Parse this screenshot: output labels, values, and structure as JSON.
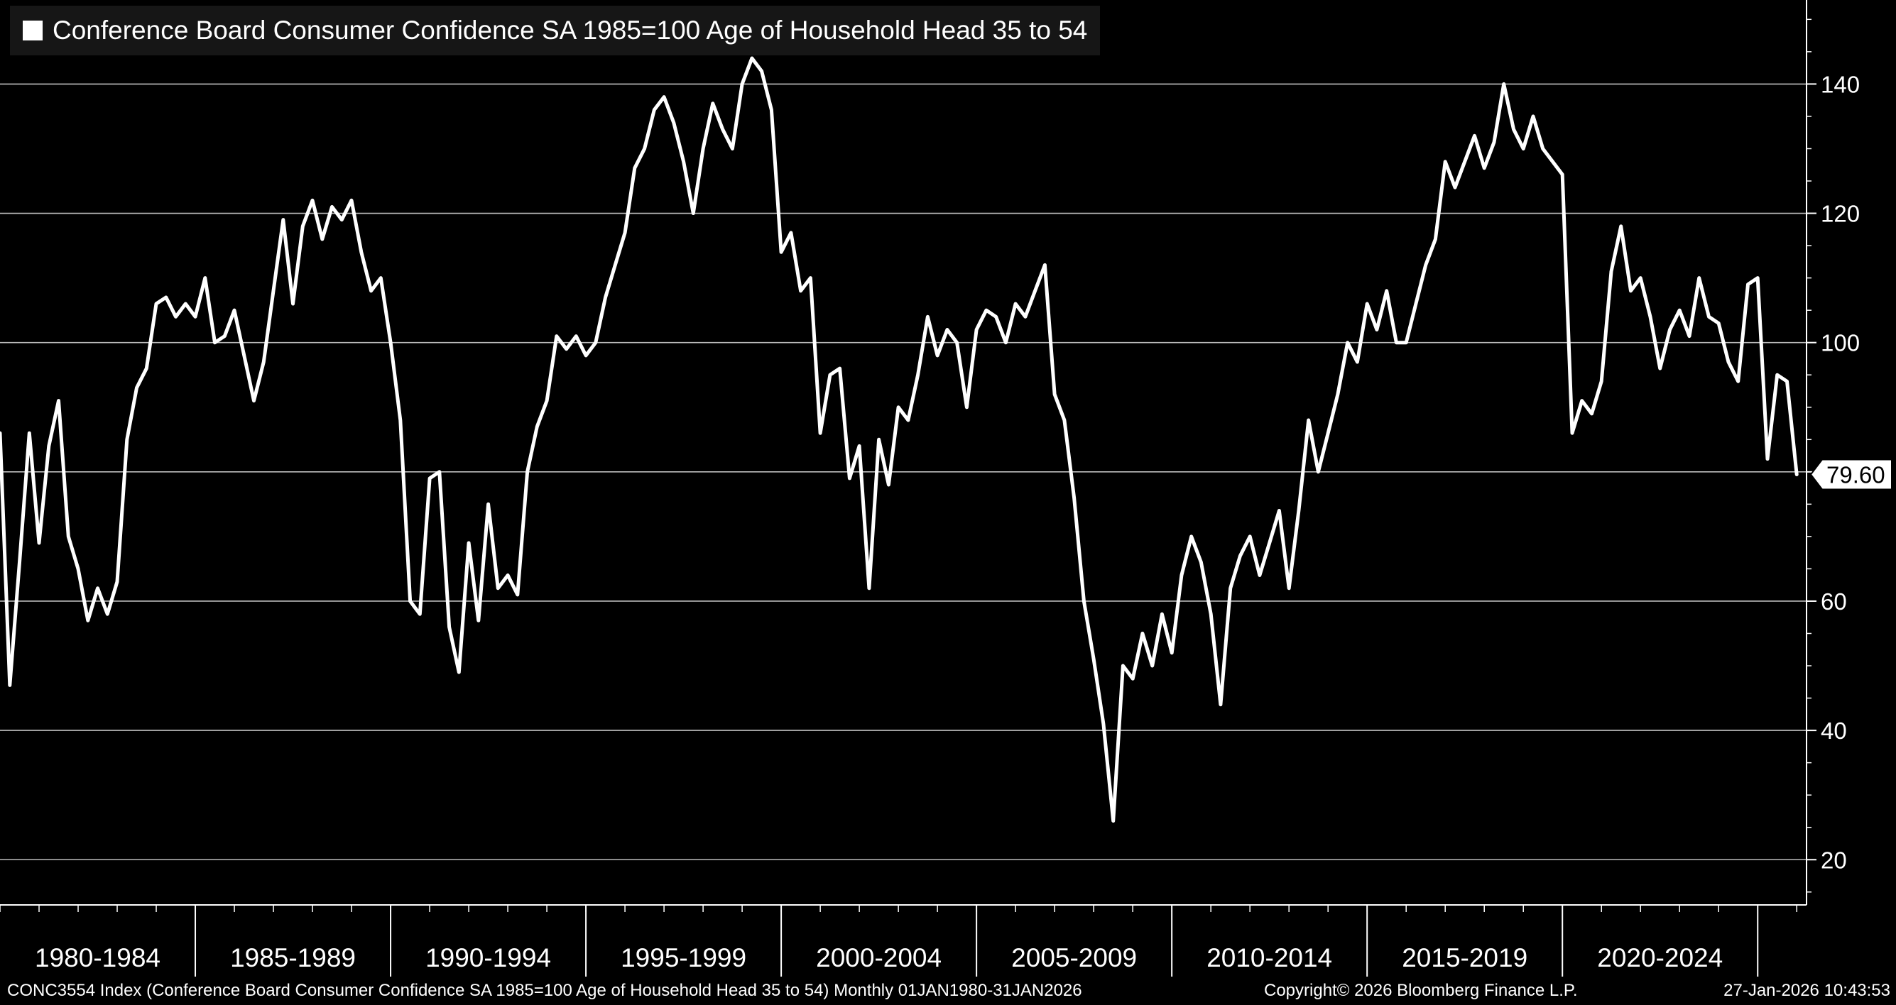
{
  "legend": {
    "label": "Conference Board Consumer Confidence SA 1985=100 Age of Household Head 35 to 54"
  },
  "footer": {
    "left": "CONC3554 Index (Conference Board Consumer Confidence SA 1985=100 Age of Household Head 35 to 54) Monthly 01JAN1980-31JAN2026",
    "center": "Copyright© 2026 Bloomberg Finance L.P.",
    "right": "27-Jan-2026 10:43:53"
  },
  "colors": {
    "background": "#000000",
    "line": "#ffffff",
    "grid": "#bdbdbd"
  },
  "chart_data": {
    "type": "line",
    "title": "",
    "xlabel": "",
    "ylabel": "",
    "frequency": "monthly",
    "x_range": [
      "1980-01",
      "2026-01"
    ],
    "xlim": [
      1980.0,
      2026.25
    ],
    "ylim": [
      13,
      153
    ],
    "y_ticks": [
      20,
      40,
      60,
      80,
      100,
      120,
      140
    ],
    "y_tick_labels": [
      "20",
      "40",
      "60",
      "",
      "100",
      "120",
      "140"
    ],
    "grid": true,
    "axis_side": "right",
    "legend_position": "top-left",
    "x_period_labels": [
      "1980-1984",
      "1985-1989",
      "1990-1994",
      "1995-1999",
      "2000-2004",
      "2005-2009",
      "2010-2014",
      "2015-2019",
      "2020-2024"
    ],
    "last_value": {
      "label": "79.60",
      "value": 79.6
    },
    "series": [
      {
        "name": "Conference Board Consumer Confidence SA 1985=100 Age of Household Head 35 to 54",
        "color": "#ffffff",
        "points": [
          [
            "1980-01",
            86
          ],
          [
            "1980-04",
            47
          ],
          [
            "1980-07",
            66
          ],
          [
            "1980-10",
            86
          ],
          [
            "1981-01",
            69
          ],
          [
            "1981-04",
            84
          ],
          [
            "1981-07",
            91
          ],
          [
            "1981-10",
            70
          ],
          [
            "1982-01",
            65
          ],
          [
            "1982-04",
            57
          ],
          [
            "1982-07",
            62
          ],
          [
            "1982-10",
            58
          ],
          [
            "1983-01",
            63
          ],
          [
            "1983-04",
            85
          ],
          [
            "1983-07",
            93
          ],
          [
            "1983-10",
            96
          ],
          [
            "1984-01",
            106
          ],
          [
            "1984-04",
            107
          ],
          [
            "1984-07",
            104
          ],
          [
            "1984-10",
            106
          ],
          [
            "1985-01",
            104
          ],
          [
            "1985-04",
            110
          ],
          [
            "1985-07",
            100
          ],
          [
            "1985-10",
            101
          ],
          [
            "1986-01",
            105
          ],
          [
            "1986-04",
            98
          ],
          [
            "1986-07",
            91
          ],
          [
            "1986-10",
            97
          ],
          [
            "1987-01",
            108
          ],
          [
            "1987-04",
            119
          ],
          [
            "1987-07",
            106
          ],
          [
            "1987-10",
            118
          ],
          [
            "1988-01",
            122
          ],
          [
            "1988-04",
            116
          ],
          [
            "1988-07",
            121
          ],
          [
            "1988-10",
            119
          ],
          [
            "1989-01",
            122
          ],
          [
            "1989-04",
            114
          ],
          [
            "1989-07",
            108
          ],
          [
            "1989-10",
            110
          ],
          [
            "1990-01",
            100
          ],
          [
            "1990-04",
            88
          ],
          [
            "1990-07",
            60
          ],
          [
            "1990-10",
            58
          ],
          [
            "1991-01",
            79
          ],
          [
            "1991-04",
            80
          ],
          [
            "1991-07",
            56
          ],
          [
            "1991-10",
            49
          ],
          [
            "1992-01",
            69
          ],
          [
            "1992-04",
            57
          ],
          [
            "1992-07",
            75
          ],
          [
            "1992-10",
            62
          ],
          [
            "1993-01",
            64
          ],
          [
            "1993-04",
            61
          ],
          [
            "1993-07",
            80
          ],
          [
            "1993-10",
            87
          ],
          [
            "1994-01",
            91
          ],
          [
            "1994-04",
            101
          ],
          [
            "1994-07",
            99
          ],
          [
            "1994-10",
            101
          ],
          [
            "1995-01",
            98
          ],
          [
            "1995-04",
            100
          ],
          [
            "1995-07",
            107
          ],
          [
            "1995-10",
            112
          ],
          [
            "1996-01",
            117
          ],
          [
            "1996-04",
            127
          ],
          [
            "1996-07",
            130
          ],
          [
            "1996-10",
            136
          ],
          [
            "1997-01",
            138
          ],
          [
            "1997-04",
            134
          ],
          [
            "1997-07",
            128
          ],
          [
            "1997-10",
            120
          ],
          [
            "1998-01",
            130
          ],
          [
            "1998-04",
            137
          ],
          [
            "1998-07",
            133
          ],
          [
            "1998-10",
            130
          ],
          [
            "1999-01",
            140
          ],
          [
            "1999-04",
            144
          ],
          [
            "1999-07",
            142
          ],
          [
            "1999-10",
            136
          ],
          [
            "2000-01",
            114
          ],
          [
            "2000-04",
            117
          ],
          [
            "2000-07",
            108
          ],
          [
            "2000-10",
            110
          ],
          [
            "2001-01",
            86
          ],
          [
            "2001-04",
            95
          ],
          [
            "2001-07",
            96
          ],
          [
            "2001-10",
            79
          ],
          [
            "2002-01",
            84
          ],
          [
            "2002-04",
            62
          ],
          [
            "2002-07",
            85
          ],
          [
            "2002-10",
            78
          ],
          [
            "2003-01",
            90
          ],
          [
            "2003-04",
            88
          ],
          [
            "2003-07",
            95
          ],
          [
            "2003-10",
            104
          ],
          [
            "2004-01",
            98
          ],
          [
            "2004-04",
            102
          ],
          [
            "2004-07",
            100
          ],
          [
            "2004-10",
            90
          ],
          [
            "2005-01",
            102
          ],
          [
            "2005-04",
            105
          ],
          [
            "2005-07",
            104
          ],
          [
            "2005-10",
            100
          ],
          [
            "2006-01",
            106
          ],
          [
            "2006-04",
            104
          ],
          [
            "2006-07",
            108
          ],
          [
            "2006-10",
            112
          ],
          [
            "2007-01",
            92
          ],
          [
            "2007-04",
            88
          ],
          [
            "2007-07",
            76
          ],
          [
            "2007-10",
            60
          ],
          [
            "2008-01",
            51
          ],
          [
            "2008-04",
            41
          ],
          [
            "2008-07",
            26
          ],
          [
            "2008-10",
            50
          ],
          [
            "2009-01",
            48
          ],
          [
            "2009-04",
            55
          ],
          [
            "2009-07",
            50
          ],
          [
            "2009-10",
            58
          ],
          [
            "2010-01",
            52
          ],
          [
            "2010-04",
            64
          ],
          [
            "2010-07",
            70
          ],
          [
            "2010-10",
            66
          ],
          [
            "2011-01",
            58
          ],
          [
            "2011-04",
            44
          ],
          [
            "2011-07",
            62
          ],
          [
            "2011-10",
            67
          ],
          [
            "2012-01",
            70
          ],
          [
            "2012-04",
            64
          ],
          [
            "2012-07",
            69
          ],
          [
            "2012-10",
            74
          ],
          [
            "2013-01",
            62
          ],
          [
            "2013-04",
            74
          ],
          [
            "2013-07",
            88
          ],
          [
            "2013-10",
            80
          ],
          [
            "2014-01",
            86
          ],
          [
            "2014-04",
            92
          ],
          [
            "2014-07",
            100
          ],
          [
            "2014-10",
            97
          ],
          [
            "2015-01",
            106
          ],
          [
            "2015-04",
            102
          ],
          [
            "2015-07",
            108
          ],
          [
            "2015-10",
            100
          ],
          [
            "2016-01",
            100
          ],
          [
            "2016-04",
            106
          ],
          [
            "2016-07",
            112
          ],
          [
            "2016-10",
            116
          ],
          [
            "2017-01",
            128
          ],
          [
            "2017-04",
            124
          ],
          [
            "2017-07",
            128
          ],
          [
            "2017-10",
            132
          ],
          [
            "2018-01",
            127
          ],
          [
            "2018-04",
            131
          ],
          [
            "2018-07",
            140
          ],
          [
            "2018-10",
            133
          ],
          [
            "2019-01",
            130
          ],
          [
            "2019-04",
            135
          ],
          [
            "2019-07",
            130
          ],
          [
            "2019-10",
            128
          ],
          [
            "2020-01",
            126
          ],
          [
            "2020-04",
            86
          ],
          [
            "2020-07",
            91
          ],
          [
            "2020-10",
            89
          ],
          [
            "2021-01",
            94
          ],
          [
            "2021-04",
            111
          ],
          [
            "2021-07",
            118
          ],
          [
            "2021-10",
            108
          ],
          [
            "2022-01",
            110
          ],
          [
            "2022-04",
            104
          ],
          [
            "2022-07",
            96
          ],
          [
            "2022-10",
            102
          ],
          [
            "2023-01",
            105
          ],
          [
            "2023-04",
            101
          ],
          [
            "2023-07",
            110
          ],
          [
            "2023-10",
            104
          ],
          [
            "2024-01",
            103
          ],
          [
            "2024-04",
            97
          ],
          [
            "2024-07",
            94
          ],
          [
            "2024-10",
            109
          ],
          [
            "2025-01",
            110
          ],
          [
            "2025-04",
            82
          ],
          [
            "2025-07",
            95
          ],
          [
            "2025-10",
            94
          ],
          [
            "2026-01",
            79.6
          ]
        ]
      }
    ]
  }
}
